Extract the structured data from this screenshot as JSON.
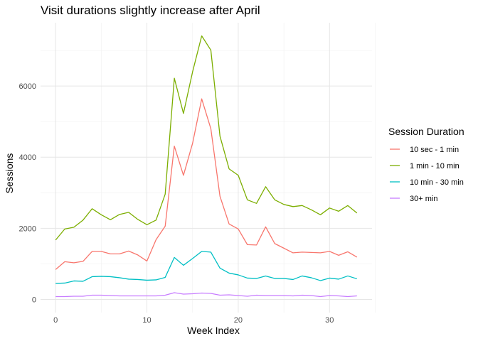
{
  "chart_data": {
    "type": "line",
    "title": "Visit durations slightly increase after April",
    "xlabel": "Week Index",
    "ylabel": "Sessions",
    "xlim": [
      -1.65,
      34.65
    ],
    "ylim": [
      -370,
      7780
    ],
    "xticks": [
      0,
      10,
      20,
      30
    ],
    "yticks": [
      0,
      2000,
      4000,
      6000
    ],
    "grid": true,
    "legend": {
      "title": "Session Duration",
      "position": "right"
    },
    "x": [
      0,
      1,
      2,
      3,
      4,
      5,
      6,
      7,
      8,
      9,
      10,
      11,
      12,
      13,
      14,
      15,
      16,
      17,
      18,
      19,
      20,
      21,
      22,
      23,
      24,
      25,
      26,
      27,
      28,
      29,
      30,
      31,
      32,
      33
    ],
    "series": [
      {
        "name": "10 sec - 1 min",
        "color": "#F8766D",
        "values": [
          840,
          1060,
          1030,
          1070,
          1350,
          1350,
          1280,
          1280,
          1360,
          1250,
          1080,
          1680,
          2060,
          4310,
          3490,
          4390,
          5640,
          4800,
          2900,
          2120,
          1980,
          1540,
          1530,
          2040,
          1570,
          1440,
          1310,
          1330,
          1320,
          1310,
          1350,
          1240,
          1340,
          1190
        ]
      },
      {
        "name": "1 min - 10 min",
        "color": "#7CAE00",
        "values": [
          1670,
          1980,
          2030,
          2230,
          2550,
          2380,
          2240,
          2390,
          2450,
          2250,
          2100,
          2230,
          2960,
          6220,
          5230,
          6400,
          7410,
          7010,
          4590,
          3670,
          3490,
          2800,
          2700,
          3170,
          2800,
          2670,
          2610,
          2640,
          2520,
          2380,
          2570,
          2480,
          2640,
          2430
        ]
      },
      {
        "name": "10 min - 30 min",
        "color": "#00BFC4",
        "values": [
          450,
          460,
          520,
          510,
          640,
          650,
          640,
          610,
          570,
          560,
          540,
          550,
          620,
          1180,
          960,
          1150,
          1350,
          1330,
          880,
          740,
          690,
          600,
          590,
          660,
          590,
          590,
          560,
          660,
          610,
          530,
          600,
          570,
          660,
          580
        ]
      },
      {
        "name": "30+ min",
        "color": "#C77CFF",
        "values": [
          80,
          80,
          90,
          90,
          120,
          120,
          110,
          100,
          100,
          100,
          100,
          100,
          120,
          190,
          150,
          160,
          180,
          170,
          120,
          130,
          110,
          90,
          120,
          110,
          110,
          110,
          100,
          120,
          110,
          80,
          110,
          100,
          80,
          100
        ]
      }
    ]
  }
}
